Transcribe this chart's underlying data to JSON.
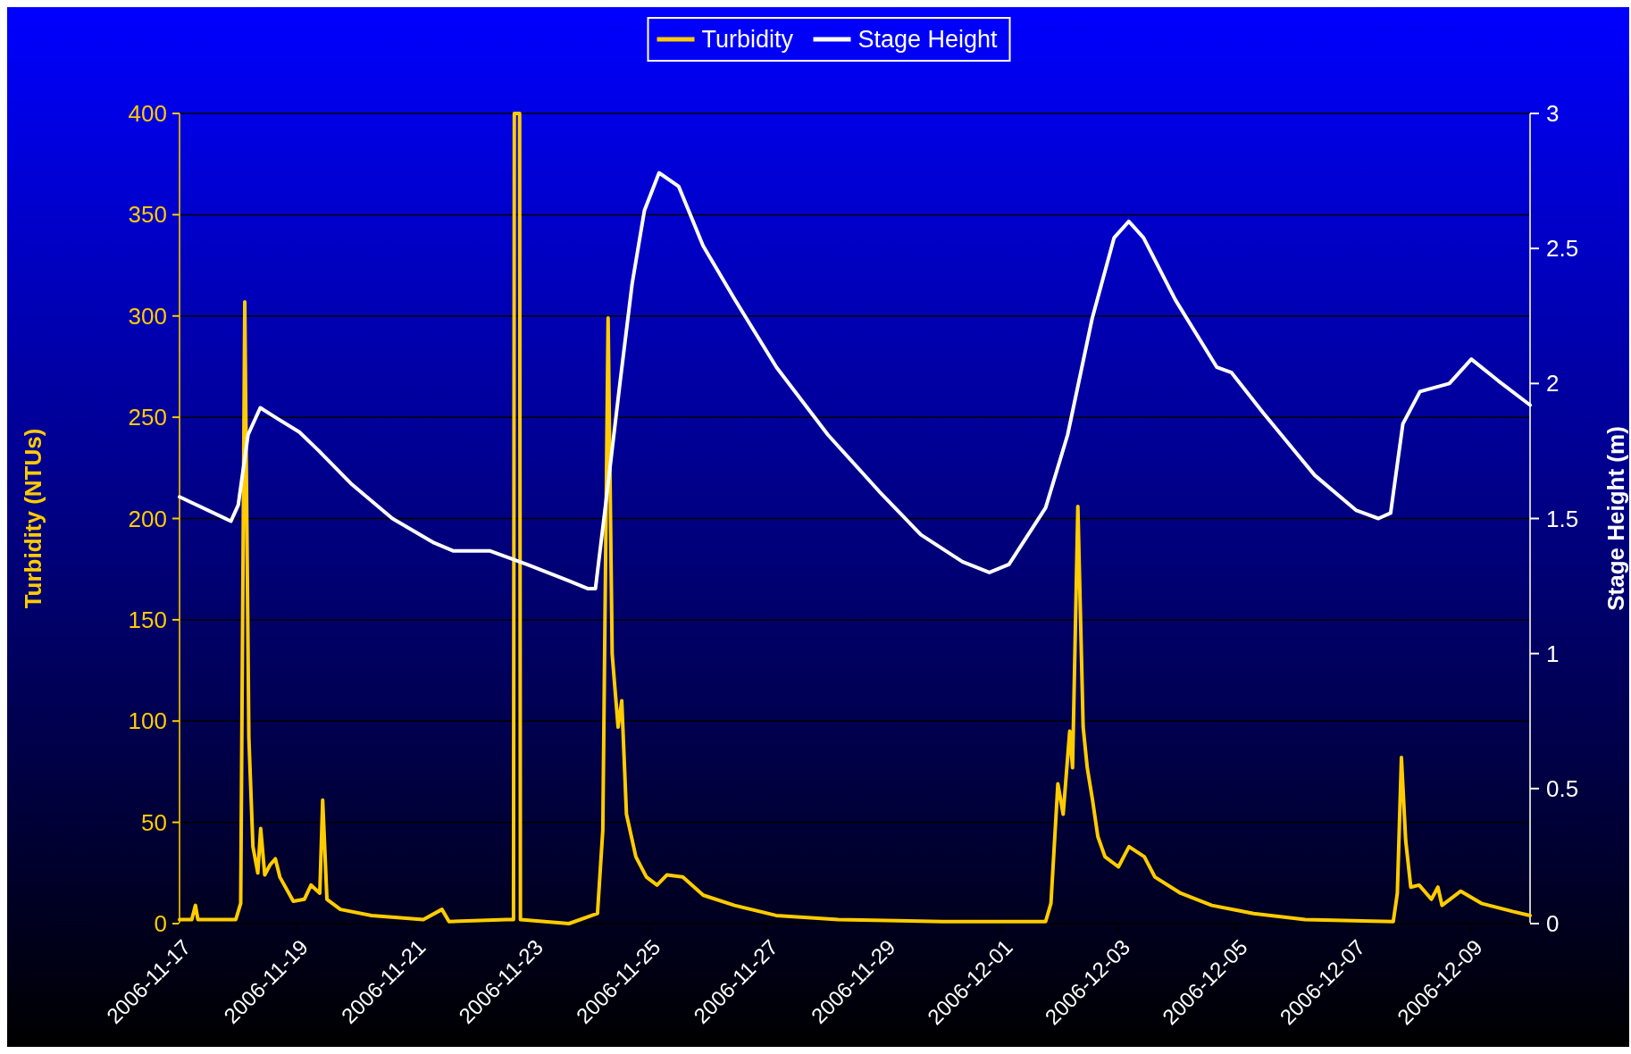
{
  "chart_data": {
    "type": "line",
    "ylabel": "Turbidity (NTUs)",
    "y2label": "Stage Height (m)",
    "xlim": [
      "2006-11-17",
      "2006-12-10"
    ],
    "xticks": [
      "2006-11-17",
      "2006-11-19",
      "2006-11-21",
      "2006-11-23",
      "2006-11-25",
      "2006-11-27",
      "2006-11-29",
      "2006-12-01",
      "2006-12-03",
      "2006-12-05",
      "2006-12-07",
      "2006-12-09"
    ],
    "ylim": [
      0,
      400
    ],
    "yticks": [
      0,
      50,
      100,
      150,
      200,
      250,
      300,
      350,
      400
    ],
    "y2lim": [
      0,
      3
    ],
    "y2ticks": [
      0,
      0.5,
      1,
      1.5,
      2,
      2.5,
      3
    ],
    "grid": "y",
    "legend": "top",
    "line_style": "solid",
    "series": [
      {
        "name": "Turbidity",
        "color": "#ffcc00",
        "x": [
          "2006-11-17T00:00",
          "2006-11-17T05:00",
          "2006-11-17T06:30",
          "2006-11-17T07:30",
          "2006-11-17T23:00",
          "2006-11-18T01:00",
          "2006-11-18T02:40",
          "2006-11-18T04:20",
          "2006-11-18T06:00",
          "2006-11-18T08:00",
          "2006-11-18T09:10",
          "2006-11-18T10:50",
          "2006-11-18T13:00",
          "2006-11-18T15:10",
          "2006-11-18T17:00",
          "2006-11-18T22:30",
          "2006-11-19T03:00",
          "2006-11-19T05:45",
          "2006-11-19T09:20",
          "2006-11-19T10:30",
          "2006-11-19T12:15",
          "2006-11-19T17:45",
          "2006-11-20T06:30",
          "2006-11-21T03:40",
          "2006-11-21T11:15",
          "2006-11-21T14:10",
          "2006-11-22T13:40",
          "2006-11-22T16:30",
          "2006-11-22T16:50",
          "2006-11-22T19:00",
          "2006-11-22T19:20",
          "2006-11-23T15:10",
          "2006-11-24T02:50",
          "2006-11-24T05:00",
          "2006-11-24T07:10",
          "2006-11-24T08:50",
          "2006-11-24T11:15",
          "2006-11-24T12:45",
          "2006-11-24T14:40",
          "2006-11-24T18:30",
          "2006-11-24T22:50",
          "2006-11-25T03:10",
          "2006-11-25T07:10",
          "2006-11-25T13:40",
          "2006-11-25T22:05",
          "2006-11-26T10:50",
          "2006-11-27T03:50",
          "2006-11-28T05:15",
          "2006-11-29T23:45",
          "2006-12-01T18:00",
          "2006-12-01T20:10",
          "2006-12-01T23:00",
          "2006-12-02T01:10",
          "2006-12-02T03:50",
          "2006-12-02T05:00",
          "2006-12-02T07:10",
          "2006-12-02T09:20",
          "2006-12-02T11:00",
          "2006-12-02T13:10",
          "2006-12-02T15:20",
          "2006-12-02T18:15",
          "2006-12-02T23:45",
          "2006-12-03T04:05",
          "2006-12-03T10:20",
          "2006-12-03T14:40",
          "2006-12-04T01:10",
          "2006-12-04T13:55",
          "2006-12-05T07:00",
          "2006-12-06T04:05",
          "2006-12-07T16:05",
          "2006-12-07T17:45",
          "2006-12-07T19:25",
          "2006-12-07T21:10",
          "2006-12-07T23:15",
          "2006-12-08T02:40",
          "2006-12-08T07:40",
          "2006-12-08T10:20",
          "2006-12-08T12:00",
          "2006-12-08T19:40",
          "2006-12-09T04:05",
          "2006-12-09T16:50",
          "2006-12-10T00:00"
        ],
        "values": [
          2,
          2,
          9,
          2,
          2,
          10,
          307,
          92,
          38,
          25,
          47,
          24,
          29,
          32,
          23,
          11,
          12,
          19,
          15,
          61,
          12,
          7,
          4,
          2,
          7,
          1,
          2,
          2,
          400,
          400,
          2,
          0,
          5,
          46,
          299,
          133,
          97,
          110,
          54,
          33,
          23,
          19,
          24,
          23,
          14,
          9,
          4,
          2,
          1,
          1,
          10,
          69,
          54,
          95,
          77,
          206,
          97,
          77,
          61,
          43,
          33,
          28,
          38,
          33,
          23,
          15,
          9,
          5,
          2,
          1,
          15,
          82,
          41,
          18,
          19,
          12,
          18,
          9,
          16,
          10,
          6,
          4
        ]
      },
      {
        "name": "Stage Height",
        "color": "#ffffff",
        "axis": "y2",
        "x": [
          "2006-11-17T00:00",
          "2006-11-17T21:00",
          "2006-11-18T00:00",
          "2006-11-18T04:00",
          "2006-11-18T09:00",
          "2006-11-18T16:00",
          "2006-11-19T01:00",
          "2006-11-19T09:00",
          "2006-11-19T22:00",
          "2006-11-20T15:00",
          "2006-11-21T08:00",
          "2006-11-21T16:00",
          "2006-11-22T07:00",
          "2006-11-22T22:00",
          "2006-11-23T15:00",
          "2006-11-23T23:00",
          "2006-11-24T02:00",
          "2006-11-24T06:00",
          "2006-11-24T12:00",
          "2006-11-24T17:00",
          "2006-11-24T22:00",
          "2006-11-25T04:00",
          "2006-11-25T12:00",
          "2006-11-25T22:00",
          "2006-11-26T11:00",
          "2006-11-27T04:00",
          "2006-11-28T01:00",
          "2006-11-28T22:00",
          "2006-11-29T15:00",
          "2006-11-30T08:00",
          "2006-11-30T19:00",
          "2006-12-01T03:00",
          "2006-12-01T18:00",
          "2006-12-02T03:00",
          "2006-12-02T13:00",
          "2006-12-02T22:00",
          "2006-12-03T04:00",
          "2006-12-03T10:00",
          "2006-12-03T23:00",
          "2006-12-04T16:00",
          "2006-12-04T22:00",
          "2006-12-05T11:00",
          "2006-12-06T08:00",
          "2006-12-07T01:00",
          "2006-12-07T10:00",
          "2006-12-07T15:00",
          "2006-12-07T20:00",
          "2006-12-08T03:00",
          "2006-12-08T15:00",
          "2006-12-09T00:00",
          "2006-12-09T11:00",
          "2006-12-10T00:00"
        ],
        "values": [
          1.58,
          1.49,
          1.55,
          1.81,
          1.91,
          1.87,
          1.82,
          1.75,
          1.63,
          1.5,
          1.41,
          1.38,
          1.38,
          1.33,
          1.27,
          1.24,
          1.24,
          1.54,
          2.0,
          2.37,
          2.64,
          2.78,
          2.73,
          2.51,
          2.31,
          2.06,
          1.81,
          1.6,
          1.44,
          1.34,
          1.3,
          1.33,
          1.54,
          1.81,
          2.24,
          2.54,
          2.6,
          2.54,
          2.31,
          2.06,
          2.04,
          1.89,
          1.66,
          1.53,
          1.5,
          1.52,
          1.85,
          1.97,
          2.0,
          2.09,
          2.01,
          1.92
        ]
      }
    ]
  }
}
